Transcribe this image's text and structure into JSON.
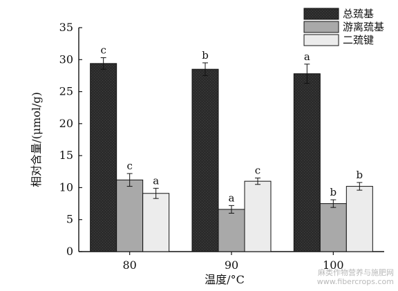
{
  "chart_data": {
    "type": "bar",
    "categories": [
      "80",
      "90",
      "100"
    ],
    "series": [
      {
        "name": "总巯基",
        "values": [
          29.4,
          28.5,
          27.8
        ],
        "errors": [
          0.9,
          1.0,
          1.5
        ],
        "labels": [
          "c",
          "b",
          "a"
        ],
        "color": "#2b2b2b"
      },
      {
        "name": "游离巯基",
        "values": [
          11.2,
          6.6,
          7.5
        ],
        "errors": [
          1.0,
          0.6,
          0.6
        ],
        "labels": [
          "c",
          "a",
          "b"
        ],
        "color": "#a9a9a9"
      },
      {
        "name": "二巯键",
        "values": [
          9.1,
          11.0,
          10.2
        ],
        "errors": [
          0.8,
          0.5,
          0.6
        ],
        "labels": [
          "a",
          "c",
          "b"
        ],
        "color": "#ececec"
      }
    ],
    "xlabel": "温度/°C",
    "ylabel": "相对含量/(μmol/g)",
    "ylim": [
      0,
      35
    ],
    "yticks": [
      0,
      5,
      10,
      15,
      20,
      25,
      30,
      35
    ],
    "legend_position": "top-right",
    "grid": false
  },
  "watermark": {
    "line1": "麻类作物营养与施肥网",
    "line2": "www.fibercrops.com"
  }
}
